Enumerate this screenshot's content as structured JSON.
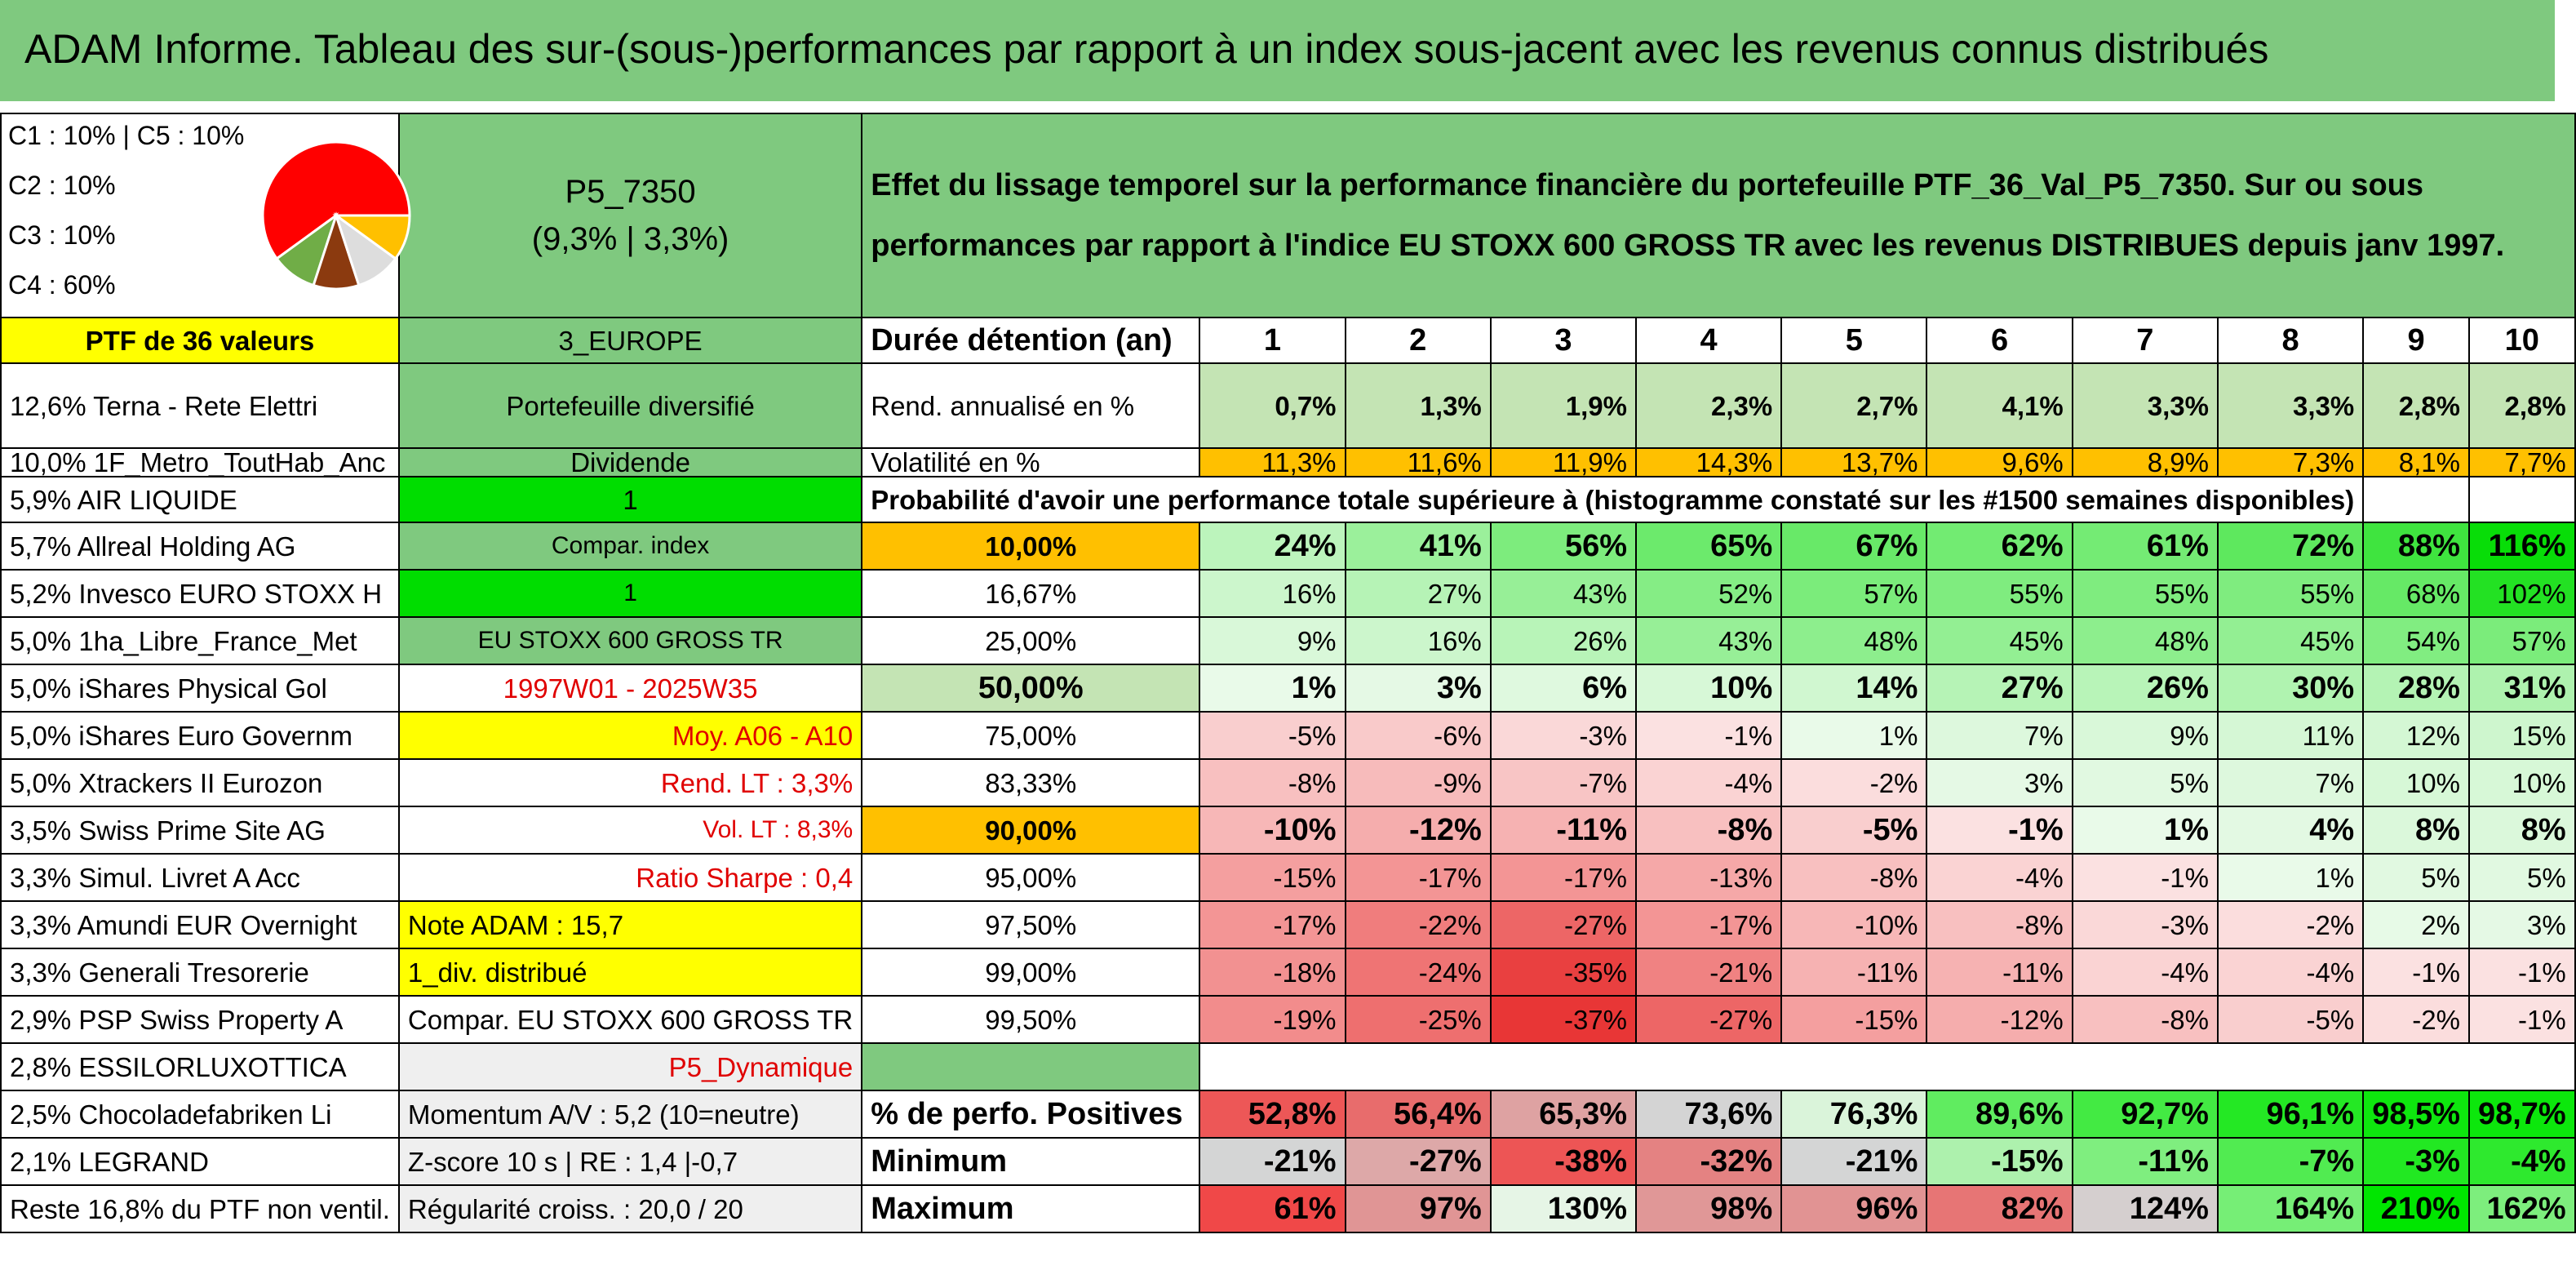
{
  "title": "ADAM Informe. Tableau des sur-(sous-)performances par rapport à un index sous-jacent avec les revenus connus distribués",
  "legend": {
    "line1": "C1 : 10% | C5 : 10%",
    "line2": "C2 : 10%",
    "line3": "C3 : 10%",
    "line4": "C4 : 60%"
  },
  "pie": {
    "slices": [
      {
        "label": "C4",
        "value": 60,
        "color": "#ff0000"
      },
      {
        "label": "C3",
        "value": 10,
        "color": "#ffc000"
      },
      {
        "label": "C5",
        "value": 10,
        "color": "#dddddd"
      },
      {
        "label": "C1",
        "value": 10,
        "color": "#8b3a0f"
      },
      {
        "label": "C2",
        "value": 10,
        "color": "#70ad47"
      }
    ]
  },
  "portfolio": {
    "code": "P5_7350",
    "perf": "(9,3% | 3,3%)"
  },
  "description": "Effet du lissage temporel sur la performance financière du portefeuille PTF_36_Val_P5_7350. Sur ou sous performances par rapport à l'indice EU STOXX 600 GROSS TR avec les revenus DISTRIBUES depuis janv 1997.",
  "col1": [
    "PTF de 36 valeurs",
    "12,6% Terna - Rete Elettri",
    "10,0% 1F_Metro_ToutHab_Anc",
    "5,9% AIR LIQUIDE",
    "5,7% Allreal Holding AG",
    "5,2% Invesco EURO STOXX H",
    "5,0% 1ha_Libre_France_Met",
    "5,0% iShares Physical Gol",
    "5,0% iShares Euro Governm",
    "5,0% Xtrackers II Eurozon",
    "3,5% Swiss Prime Site AG",
    "3,3% Simul. Livret A Acc",
    "3,3% Amundi EUR Overnight",
    "3,3% Generali Tresorerie",
    "2,9% PSP Swiss Property A",
    "2,8% ESSILORLUXOTTICA",
    "2,5% Chocoladefabriken Li",
    "2,1% LEGRAND",
    "Reste 16,8% du PTF non ventil."
  ],
  "col2": [
    "3_EUROPE",
    "Portefeuille diversifié",
    "Dividende",
    "1",
    "Compar. index",
    "1",
    "EU STOXX 600 GROSS TR",
    "1997W01 - 2025W35",
    "Moy. A06 - A10",
    "Rend. LT : 3,3%",
    "Vol. LT : 8,3%",
    "Ratio Sharpe : 0,4",
    "Note ADAM : 15,7",
    "1_div. distribué",
    "Compar. EU STOXX 600 GROSS TR",
    "P5_Dynamique",
    "Momentum A/V : 5,2 (10=neutre)",
    "Z-score 10 s | RE : 1,4 |-0,7",
    "Régularité croiss. : 20,0 / 20"
  ],
  "header": {
    "label": "Durée détention (an)",
    "years": [
      "1",
      "2",
      "3",
      "4",
      "5",
      "6",
      "7",
      "8",
      "9",
      "10"
    ]
  },
  "rend": {
    "label": "Rend. annualisé en %",
    "values": [
      "0,7%",
      "1,3%",
      "1,9%",
      "2,3%",
      "2,7%",
      "4,1%",
      "3,3%",
      "3,3%",
      "2,8%",
      "2,8%"
    ]
  },
  "vol": {
    "label": "Volatilité en %",
    "values": [
      "11,3%",
      "11,6%",
      "11,9%",
      "14,3%",
      "13,7%",
      "9,6%",
      "8,9%",
      "7,3%",
      "8,1%",
      "7,7%"
    ]
  },
  "prob_title": "Probabilité d'avoir une performance totale supérieure à (histogramme constaté sur les #1500 semaines disponibles)",
  "prob_rows": [
    {
      "p": "10,00%",
      "v": [
        "24%",
        "41%",
        "56%",
        "65%",
        "67%",
        "62%",
        "61%",
        "72%",
        "88%",
        "116%"
      ]
    },
    {
      "p": "16,67%",
      "v": [
        "16%",
        "27%",
        "43%",
        "52%",
        "57%",
        "55%",
        "55%",
        "55%",
        "68%",
        "102%"
      ]
    },
    {
      "p": "25,00%",
      "v": [
        "9%",
        "16%",
        "26%",
        "43%",
        "48%",
        "45%",
        "48%",
        "45%",
        "54%",
        "57%"
      ]
    },
    {
      "p": "50,00%",
      "v": [
        "1%",
        "3%",
        "6%",
        "10%",
        "14%",
        "27%",
        "26%",
        "30%",
        "28%",
        "31%"
      ]
    },
    {
      "p": "75,00%",
      "v": [
        "-5%",
        "-6%",
        "-3%",
        "-1%",
        "1%",
        "7%",
        "9%",
        "11%",
        "12%",
        "15%"
      ]
    },
    {
      "p": "83,33%",
      "v": [
        "-8%",
        "-9%",
        "-7%",
        "-4%",
        "-2%",
        "3%",
        "5%",
        "7%",
        "10%",
        "10%"
      ]
    },
    {
      "p": "90,00%",
      "v": [
        "-10%",
        "-12%",
        "-11%",
        "-8%",
        "-5%",
        "-1%",
        "1%",
        "4%",
        "8%",
        "8%"
      ]
    },
    {
      "p": "95,00%",
      "v": [
        "-15%",
        "-17%",
        "-17%",
        "-13%",
        "-8%",
        "-4%",
        "-1%",
        "1%",
        "5%",
        "5%"
      ]
    },
    {
      "p": "97,50%",
      "v": [
        "-17%",
        "-22%",
        "-27%",
        "-17%",
        "-10%",
        "-8%",
        "-3%",
        "-2%",
        "2%",
        "3%"
      ]
    },
    {
      "p": "99,00%",
      "v": [
        "-18%",
        "-24%",
        "-35%",
        "-21%",
        "-11%",
        "-11%",
        "-4%",
        "-4%",
        "-1%",
        "-1%"
      ]
    },
    {
      "p": "99,50%",
      "v": [
        "-19%",
        "-25%",
        "-37%",
        "-27%",
        "-15%",
        "-12%",
        "-8%",
        "-5%",
        "-2%",
        "-1%"
      ]
    }
  ],
  "pos": {
    "label": "% de perfo. Positives",
    "values": [
      "52,8%",
      "56,4%",
      "65,3%",
      "73,6%",
      "76,3%",
      "89,6%",
      "92,7%",
      "96,1%",
      "98,5%",
      "98,7%"
    ]
  },
  "min": {
    "label": "Minimum",
    "values": [
      "-21%",
      "-27%",
      "-38%",
      "-32%",
      "-21%",
      "-15%",
      "-11%",
      "-7%",
      "-3%",
      "-4%"
    ]
  },
  "max": {
    "label": "Maximum",
    "values": [
      "61%",
      "97%",
      "130%",
      "98%",
      "96%",
      "82%",
      "124%",
      "164%",
      "210%",
      "162%"
    ]
  }
}
